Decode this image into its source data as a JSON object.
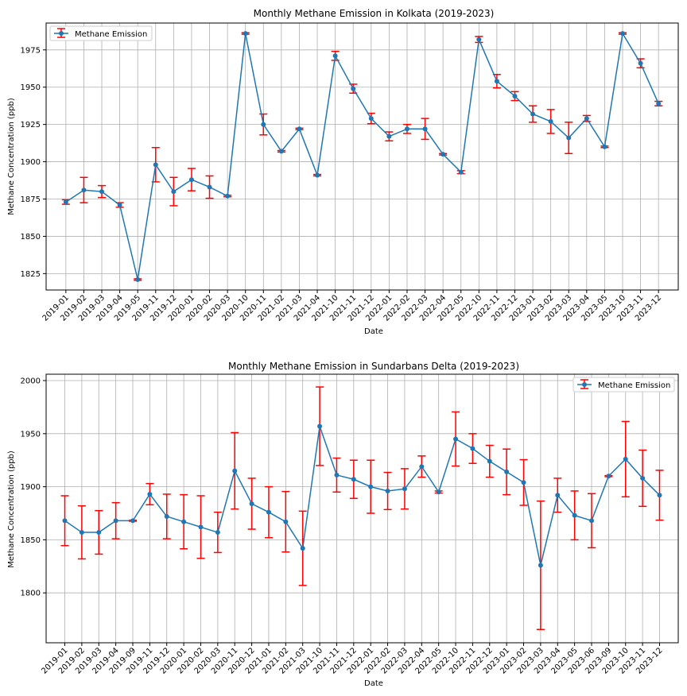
{
  "chart_data": [
    {
      "type": "line",
      "title": "Monthly Methane Emission in Kolkata (2019-2023)",
      "xlabel": "Date",
      "ylabel": "Methane Concentration (ppb)",
      "ylim": [
        1814,
        1993
      ],
      "yticks": [
        1825,
        1850,
        1875,
        1900,
        1925,
        1950,
        1975
      ],
      "grid": true,
      "legend_position": "top-left",
      "categories": [
        "2019-01",
        "2019-02",
        "2019-03",
        "2019-04",
        "2019-05",
        "2019-11",
        "2019-12",
        "2020-01",
        "2020-02",
        "2020-03",
        "2020-10",
        "2020-11",
        "2021-02",
        "2021-03",
        "2021-04",
        "2021-10",
        "2021-11",
        "2021-12",
        "2022-01",
        "2022-02",
        "2022-03",
        "2022-04",
        "2022-05",
        "2022-10",
        "2022-11",
        "2022-12",
        "2023-01",
        "2023-02",
        "2023-03",
        "2023-04",
        "2023-05",
        "2023-10",
        "2023-11",
        "2023-12"
      ],
      "series": [
        {
          "name": "Methane Emission",
          "values": [
            1873,
            1881,
            1880,
            1871,
            1821,
            1898,
            1880,
            1888,
            1883,
            1877,
            1986,
            1925,
            1907,
            1922,
            1891,
            1971,
            1949,
            1929,
            1917,
            1922,
            1922,
            1905,
            1893,
            1982,
            1954,
            1944,
            1932,
            1927,
            1916,
            1929,
            1910,
            1986,
            1966,
            1939
          ],
          "error": [
            1.5,
            8.5,
            4,
            1.5,
            0.5,
            11.5,
            9.5,
            7.5,
            7.5,
            0.5,
            0.5,
            7,
            0.5,
            0.5,
            0.5,
            3,
            3,
            3.5,
            3,
            3,
            7,
            0.5,
            1,
            2,
            4.5,
            3,
            5.5,
            8,
            10.5,
            2,
            0.5,
            0.5,
            3,
            1.5
          ]
        }
      ],
      "colors": {
        "line": "#1f77b4",
        "error": "#ff0000",
        "grid": "#b0b0b0"
      }
    },
    {
      "type": "line",
      "title": "Monthly Methane Emission in Sundarbans Delta (2019-2023)",
      "xlabel": "Date",
      "ylabel": "Methane Concentration (ppb)",
      "ylim": [
        1753,
        2006
      ],
      "yticks": [
        1800,
        1850,
        1900,
        1950,
        2000
      ],
      "grid": true,
      "legend_position": "top-right",
      "categories": [
        "2019-01",
        "2019-02",
        "2019-03",
        "2019-04",
        "2019-09",
        "2019-11",
        "2019-12",
        "2020-01",
        "2020-02",
        "2020-03",
        "2020-11",
        "2020-12",
        "2021-01",
        "2021-02",
        "2021-03",
        "2021-10",
        "2021-11",
        "2021-12",
        "2022-01",
        "2022-02",
        "2022-03",
        "2022-04",
        "2022-05",
        "2022-10",
        "2022-11",
        "2022-12",
        "2023-01",
        "2023-02",
        "2023-03",
        "2023-04",
        "2023-05",
        "2023-06",
        "2023-09",
        "2023-10",
        "2023-11",
        "2023-12"
      ],
      "series": [
        {
          "name": "Methane Emission",
          "values": [
            1868,
            1857,
            1857,
            1868,
            1868,
            1893,
            1872,
            1867,
            1862,
            1857,
            1915,
            1884,
            1876,
            1867,
            1842,
            1957,
            1911,
            1907,
            1900,
            1896,
            1898,
            1919,
            1895,
            1945,
            1936,
            1924,
            1914,
            1904,
            1826,
            1892,
            1873,
            1868,
            1910,
            1926,
            1908,
            1892
          ],
          "error": [
            23.5,
            25,
            20.5,
            17,
            0.5,
            10,
            21,
            25.5,
            29.5,
            19,
            36,
            24,
            24,
            28.5,
            35,
            37,
            16,
            18,
            25,
            17.5,
            19,
            10,
            1,
            25.5,
            14,
            15,
            21.5,
            21.5,
            60.5,
            16,
            23,
            25.5,
            0.5,
            35.5,
            26.5,
            23.5
          ]
        }
      ],
      "colors": {
        "line": "#1f77b4",
        "error": "#ff0000",
        "grid": "#b0b0b0"
      }
    }
  ]
}
